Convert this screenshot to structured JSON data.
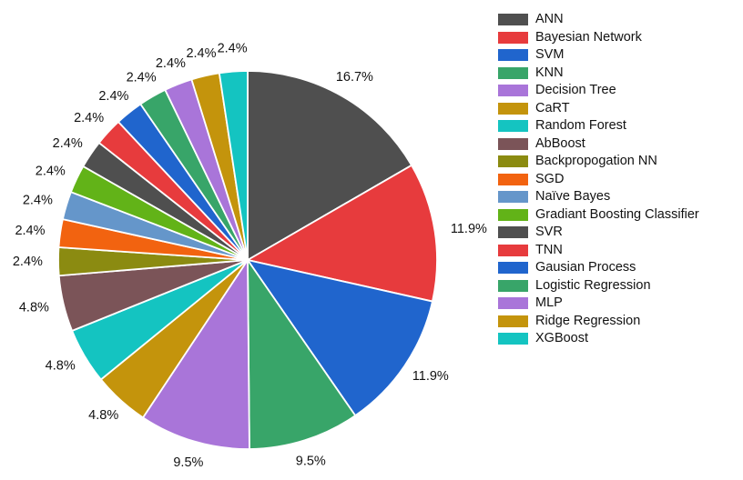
{
  "chart_data": {
    "type": "pie",
    "categories": [
      "ANN",
      "Bayesian Network",
      "SVM",
      "KNN",
      "Decision Tree",
      "CaRT",
      "Random Forest",
      "AbBoost",
      "Backpropogation NN",
      "SGD",
      "Naïve Bayes",
      "Gradiant Boosting Classifier",
      "SVR",
      "TNN",
      "Gausian Process",
      "Logistic Regression",
      "MLP",
      "Ridge Regression",
      "XGBoost"
    ],
    "values": [
      16.7,
      11.9,
      11.9,
      9.5,
      9.5,
      4.8,
      4.8,
      4.8,
      2.4,
      2.4,
      2.4,
      2.4,
      2.4,
      2.4,
      2.4,
      2.4,
      2.4,
      2.4,
      2.4
    ],
    "labels": [
      "16.7%",
      "11.9%",
      "11.9%",
      "9.5%",
      "9.5%",
      "4.8%",
      "4.8%",
      "4.8%",
      "2.4%",
      "2.4%",
      "2.4%",
      "2.4%",
      "2.4%",
      "2.4%",
      "2.4%",
      "2.4%",
      "2.4%",
      "2.4%",
      "2.4%"
    ],
    "colors": [
      "#4f4f4f",
      "#e73b3d",
      "#2065cd",
      "#38a569",
      "#a975d9",
      "#c4940c",
      "#14c4c1",
      "#7b5458",
      "#8b8b11",
      "#f26310",
      "#6596ca",
      "#62b318",
      "#4f4f4f",
      "#e73b3d",
      "#2065cd",
      "#38a569",
      "#a975d9",
      "#c4940c",
      "#14c4c1"
    ],
    "title": "",
    "start_angle_deg": 0,
    "direction": "clockwise",
    "slice_border_color": "#ffffff",
    "label_color": "#111111",
    "background": "#ffffff",
    "legend_position": "right",
    "grid": false
  }
}
